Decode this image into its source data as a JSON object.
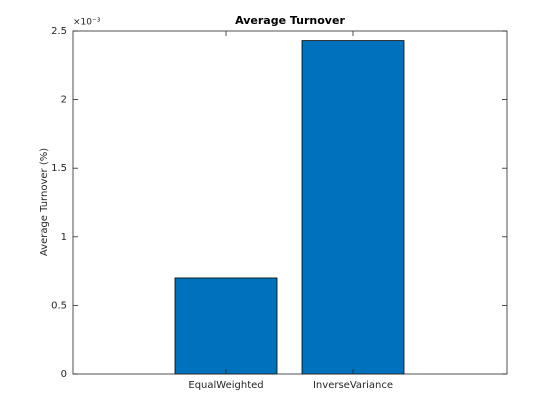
{
  "chart_data": {
    "type": "bar",
    "title": "Average Turnover",
    "y_label": "Average Turnover (%)",
    "y_multiplier": "×10⁻³",
    "categories": [
      "EqualWeighted",
      "InverseVariance"
    ],
    "values": [
      0.7,
      2.43
    ],
    "color": "#0072bd",
    "ylim": [
      0,
      2.5
    ],
    "yticks": [
      0,
      0.5,
      1,
      1.5,
      2,
      2.5
    ],
    "grid": false
  }
}
